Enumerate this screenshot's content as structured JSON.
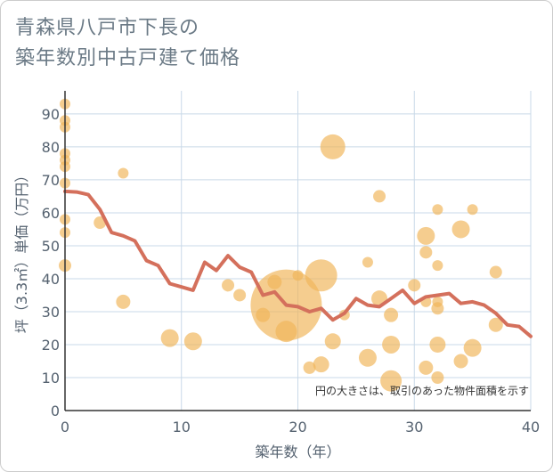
{
  "chart_data": {
    "type": "scatter",
    "title_lines": [
      "青森県八戸市下長の",
      "築年数別中古戸建て価格"
    ],
    "xlabel": "築年数（年）",
    "ylabel": "坪（3.3㎡）単価（万円）",
    "xlim": [
      0,
      40
    ],
    "ylim": [
      0,
      97
    ],
    "x_ticks": [
      0,
      10,
      20,
      30,
      40
    ],
    "y_ticks": [
      0,
      10,
      20,
      30,
      40,
      50,
      60,
      70,
      80,
      90
    ],
    "grid": true,
    "note": "円の大きさは、取引のあった物件面積を示す",
    "colors": {
      "bubble": "#f0b55a",
      "line": "#d4705c",
      "grid": "#c9d9e8",
      "background": "#ffffff"
    },
    "points": [
      {
        "x": 0,
        "y": 93,
        "r": 6
      },
      {
        "x": 0,
        "y": 88,
        "r": 6
      },
      {
        "x": 0,
        "y": 86,
        "r": 6
      },
      {
        "x": 0,
        "y": 78,
        "r": 6
      },
      {
        "x": 0,
        "y": 76,
        "r": 6
      },
      {
        "x": 0,
        "y": 74,
        "r": 6
      },
      {
        "x": 0,
        "y": 69,
        "r": 6
      },
      {
        "x": 0,
        "y": 58,
        "r": 6
      },
      {
        "x": 0,
        "y": 54,
        "r": 6
      },
      {
        "x": 0,
        "y": 44,
        "r": 7
      },
      {
        "x": 3,
        "y": 57,
        "r": 7
      },
      {
        "x": 5,
        "y": 72,
        "r": 6
      },
      {
        "x": 5,
        "y": 33,
        "r": 8
      },
      {
        "x": 9,
        "y": 22,
        "r": 10
      },
      {
        "x": 11,
        "y": 21,
        "r": 10
      },
      {
        "x": 14,
        "y": 38,
        "r": 7
      },
      {
        "x": 15,
        "y": 35,
        "r": 7
      },
      {
        "x": 17,
        "y": 29,
        "r": 8
      },
      {
        "x": 18,
        "y": 39,
        "r": 8
      },
      {
        "x": 19,
        "y": 32,
        "r": 40
      },
      {
        "x": 19,
        "y": 24,
        "r": 12
      },
      {
        "x": 20,
        "y": 41,
        "r": 6
      },
      {
        "x": 21,
        "y": 13,
        "r": 7
      },
      {
        "x": 22,
        "y": 41,
        "r": 18
      },
      {
        "x": 22,
        "y": 14,
        "r": 9
      },
      {
        "x": 23,
        "y": 80,
        "r": 14
      },
      {
        "x": 23,
        "y": 21,
        "r": 9
      },
      {
        "x": 24,
        "y": 29,
        "r": 6
      },
      {
        "x": 26,
        "y": 45,
        "r": 6
      },
      {
        "x": 26,
        "y": 16,
        "r": 10
      },
      {
        "x": 27,
        "y": 65,
        "r": 7
      },
      {
        "x": 27,
        "y": 34,
        "r": 9
      },
      {
        "x": 28,
        "y": 29,
        "r": 8
      },
      {
        "x": 28,
        "y": 20,
        "r": 10
      },
      {
        "x": 28,
        "y": 9,
        "r": 12
      },
      {
        "x": 30,
        "y": 38,
        "r": 7
      },
      {
        "x": 31,
        "y": 53,
        "r": 10
      },
      {
        "x": 31,
        "y": 48,
        "r": 7
      },
      {
        "x": 31,
        "y": 33,
        "r": 6
      },
      {
        "x": 31,
        "y": 13,
        "r": 8
      },
      {
        "x": 32,
        "y": 61,
        "r": 6
      },
      {
        "x": 32,
        "y": 44,
        "r": 6
      },
      {
        "x": 32,
        "y": 33,
        "r": 6
      },
      {
        "x": 32,
        "y": 31,
        "r": 7
      },
      {
        "x": 32,
        "y": 20,
        "r": 9
      },
      {
        "x": 32,
        "y": 10,
        "r": 7
      },
      {
        "x": 34,
        "y": 55,
        "r": 10
      },
      {
        "x": 34,
        "y": 15,
        "r": 8
      },
      {
        "x": 35,
        "y": 61,
        "r": 6
      },
      {
        "x": 35,
        "y": 19,
        "r": 10
      },
      {
        "x": 37,
        "y": 42,
        "r": 7
      },
      {
        "x": 37,
        "y": 26,
        "r": 8
      }
    ],
    "trend": {
      "x": [
        0,
        1,
        2,
        3,
        4,
        5,
        6,
        7,
        8,
        9,
        10,
        11,
        12,
        13,
        14,
        15,
        16,
        17,
        18,
        19,
        20,
        21,
        22,
        23,
        24,
        25,
        26,
        27,
        28,
        29,
        30,
        31,
        32,
        33,
        34,
        35,
        36,
        37,
        38,
        39,
        40
      ],
      "y": [
        66.5,
        66.3,
        65.5,
        61,
        54,
        53,
        51.5,
        45.5,
        44,
        38.5,
        37.5,
        36.5,
        45,
        42.5,
        47,
        43.5,
        42,
        35,
        36,
        32,
        31.5,
        30,
        31,
        27.5,
        29.5,
        34,
        32,
        31.5,
        34,
        36.5,
        32.5,
        34.5,
        35,
        35.5,
        32.5,
        33,
        32,
        29.5,
        26,
        25.5,
        22.5
      ]
    }
  }
}
